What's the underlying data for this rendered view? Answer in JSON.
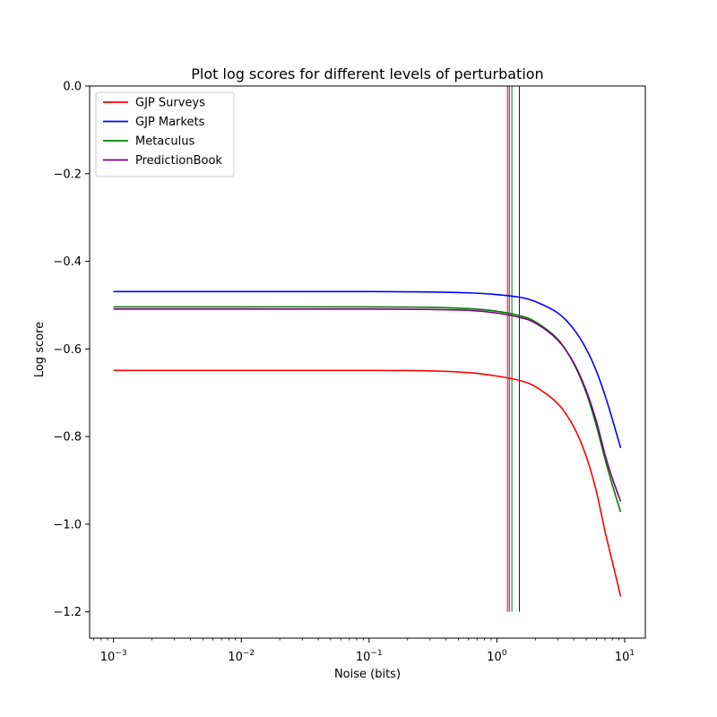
{
  "chart_data": {
    "type": "line",
    "title": "Plot log scores for different levels of perturbation",
    "xlabel": "Noise (bits)",
    "ylabel": "Log score",
    "xscale": "log",
    "xlim": [
      0.00065,
      14.5
    ],
    "ylim": [
      -1.26,
      0.0
    ],
    "x_ticks": [
      {
        "value": 0.001,
        "base": "10",
        "exp": "−3"
      },
      {
        "value": 0.01,
        "base": "10",
        "exp": "−2"
      },
      {
        "value": 0.1,
        "base": "10",
        "exp": "−1"
      },
      {
        "value": 1,
        "base": "10",
        "exp": "0"
      },
      {
        "value": 10,
        "base": "10",
        "exp": "1"
      }
    ],
    "y_ticks": [
      {
        "value": 0.0,
        "label": "0.0"
      },
      {
        "value": -0.2,
        "label": "−0.2"
      },
      {
        "value": -0.4,
        "label": "−0.4"
      },
      {
        "value": -0.6,
        "label": "−0.6"
      },
      {
        "value": -0.8,
        "label": "−0.8"
      },
      {
        "value": -1.0,
        "label": "−1.0"
      },
      {
        "value": -1.2,
        "label": "−1.2"
      }
    ],
    "legend_position": "top-left",
    "grid": false,
    "series": [
      {
        "name": "GJP Surveys",
        "color": "#ff0000",
        "x": [
          0.001,
          0.01,
          0.1,
          0.3,
          0.6,
          1.0,
          1.5,
          2.0,
          3.0,
          4.0,
          5.0,
          6.0,
          7.0,
          8.0,
          9.3
        ],
        "y": [
          -0.649,
          -0.649,
          -0.649,
          -0.65,
          -0.654,
          -0.662,
          -0.672,
          -0.686,
          -0.725,
          -0.778,
          -0.845,
          -0.925,
          -1.015,
          -1.085,
          -1.165
        ]
      },
      {
        "name": "GJP Markets",
        "color": "#0000ff",
        "x": [
          0.001,
          0.01,
          0.1,
          0.3,
          0.6,
          1.0,
          1.5,
          2.0,
          3.0,
          4.0,
          5.0,
          6.0,
          7.0,
          8.0,
          9.3
        ],
        "y": [
          -0.469,
          -0.469,
          -0.469,
          -0.47,
          -0.472,
          -0.476,
          -0.482,
          -0.492,
          -0.518,
          -0.555,
          -0.6,
          -0.65,
          -0.705,
          -0.76,
          -0.826
        ]
      },
      {
        "name": "Metaculus",
        "color": "#008000",
        "x": [
          0.001,
          0.01,
          0.1,
          0.3,
          0.6,
          1.0,
          1.5,
          2.0,
          3.0,
          4.0,
          5.0,
          6.0,
          7.0,
          8.0,
          9.3
        ],
        "y": [
          -0.504,
          -0.504,
          -0.504,
          -0.505,
          -0.508,
          -0.514,
          -0.524,
          -0.538,
          -0.578,
          -0.634,
          -0.7,
          -0.775,
          -0.85,
          -0.91,
          -0.972
        ]
      },
      {
        "name": "PredictionBook",
        "color": "#800080",
        "x": [
          0.001,
          0.01,
          0.1,
          0.3,
          0.6,
          1.0,
          1.5,
          2.0,
          3.0,
          4.0,
          5.0,
          6.0,
          7.0,
          8.0,
          9.3
        ],
        "y": [
          -0.509,
          -0.509,
          -0.509,
          -0.51,
          -0.512,
          -0.518,
          -0.528,
          -0.541,
          -0.58,
          -0.632,
          -0.695,
          -0.765,
          -0.84,
          -0.895,
          -0.948
        ]
      }
    ],
    "vertical_lines": [
      {
        "series": "GJP Surveys",
        "color": "#ff0000",
        "x": 1.21,
        "y_range": [
          -1.2,
          0.0
        ]
      },
      {
        "series": "PredictionBook",
        "color": "#800080",
        "x": 1.25,
        "y_range": [
          -1.2,
          0.0
        ]
      },
      {
        "series": "Metaculus",
        "color": "#008000",
        "x": 1.31,
        "y_range": [
          -1.2,
          0.0
        ]
      },
      {
        "series": "GJP Markets",
        "color": "#0000ff",
        "x": 1.5,
        "y_range": [
          -1.2,
          0.0
        ]
      }
    ]
  }
}
